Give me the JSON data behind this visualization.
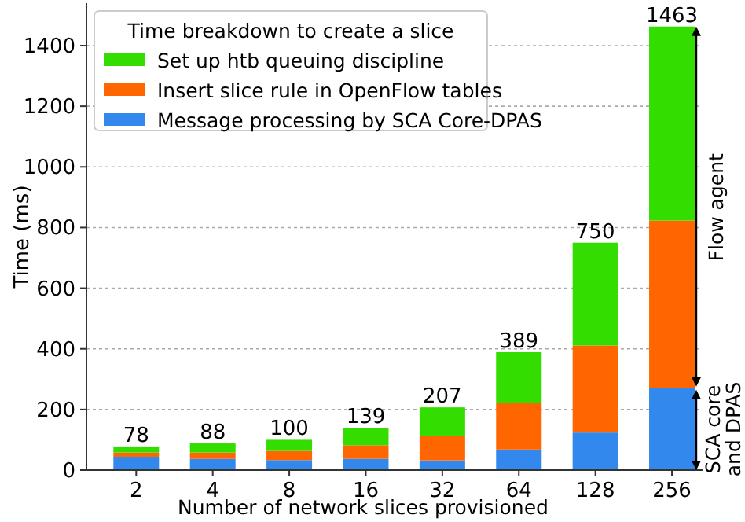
{
  "chart_data": {
    "type": "bar",
    "stacked": true,
    "xlabel": "Number of network slices provisioned",
    "ylabel": "Time (ms)",
    "legend_title": "Time breakdown to create a slice",
    "categories": [
      "2",
      "4",
      "8",
      "16",
      "32",
      "64",
      "128",
      "256"
    ],
    "series": [
      {
        "name": "Message processing by SCA Core-DPAS",
        "color": "#3388ee",
        "values": [
          44,
          37,
          33,
          37,
          32,
          68,
          124,
          270
        ]
      },
      {
        "name": "Insert slice rule in OpenFlow tables",
        "color": "#ff6600",
        "values": [
          14,
          21,
          30,
          45,
          82,
          154,
          287,
          553
        ]
      },
      {
        "name": "Set up htb queuing discipline",
        "color": "#33dd00",
        "values": [
          20,
          30,
          37,
          57,
          93,
          167,
          339,
          640
        ]
      }
    ],
    "totals": [
      "78",
      "88",
      "100",
      "139",
      "207",
      "389",
      "750",
      "1463"
    ],
    "ylim": [
      0,
      1540
    ],
    "yticks": [
      0,
      200,
      400,
      600,
      800,
      1000,
      1200,
      1400
    ],
    "grid": "y",
    "legend": "top left",
    "annotations": [
      "Flow agent",
      "SCA core and DPAS"
    ]
  }
}
